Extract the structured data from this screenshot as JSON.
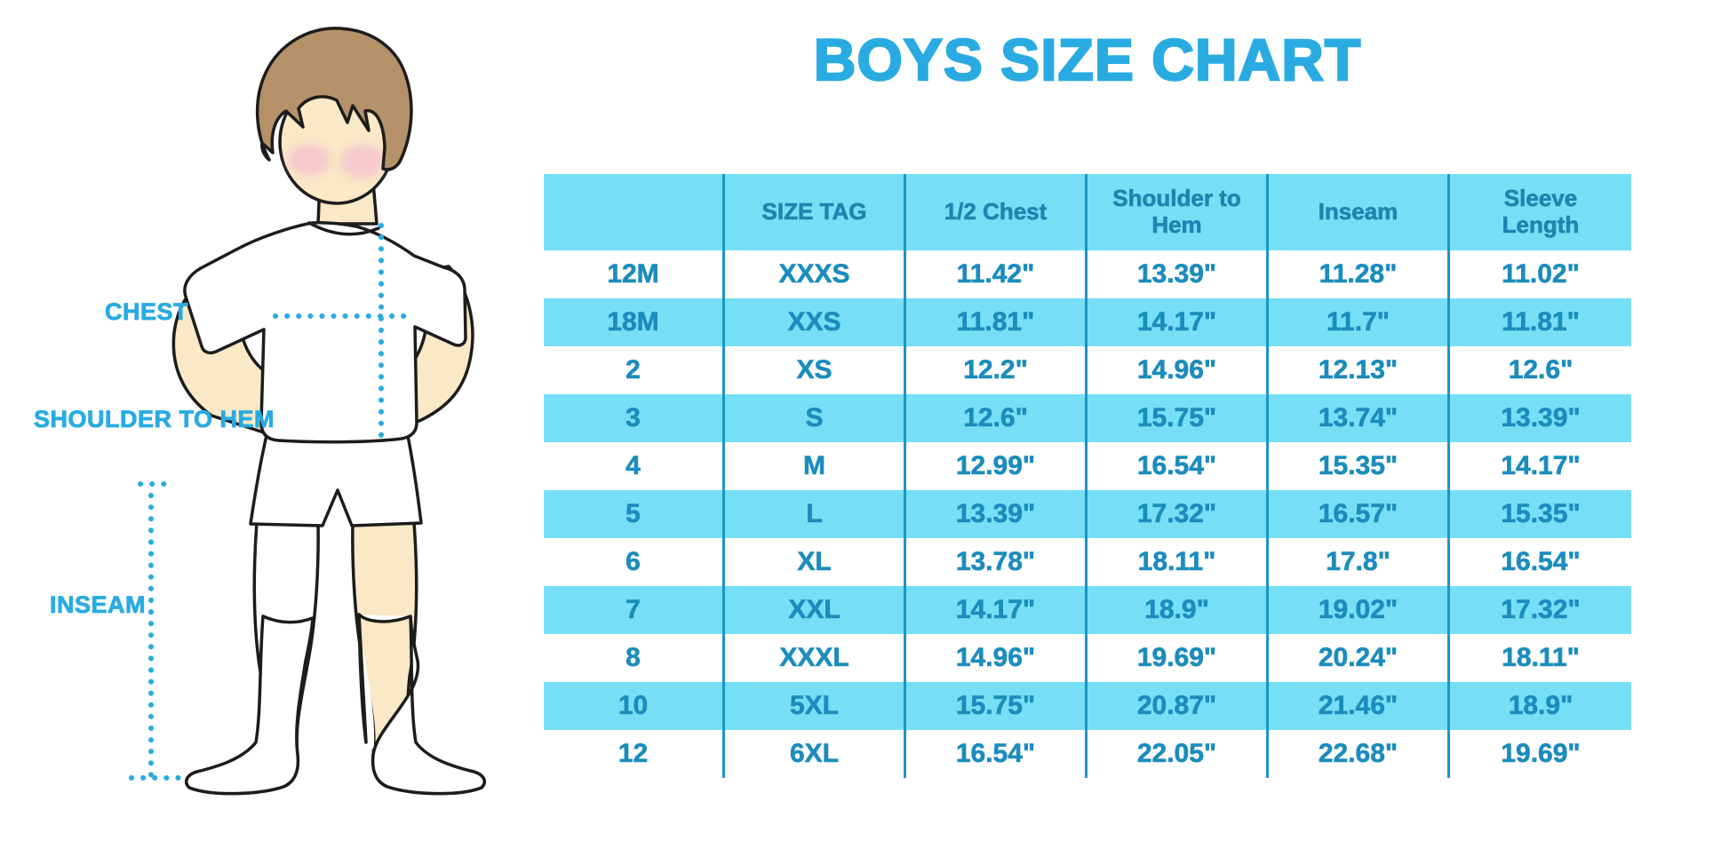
{
  "title": "BOYS SIZE CHART",
  "colors": {
    "accent_blue": "#29abe2",
    "table_alt_row_bg": "#76dff6",
    "table_divider": "#1a95c8",
    "table_text": "#1b8cbd",
    "skin": "#fae8c6",
    "hair": "#b59169",
    "blush": "#f4bfd0"
  },
  "diagram": {
    "chest_label": "CHEST",
    "shoulder_to_hem_label": "SHOULDER TO HEM",
    "inseam_label": "INSEAM"
  },
  "chart_data": {
    "type": "table",
    "title": "BOYS SIZE CHART",
    "units": "inches",
    "columns": [
      "",
      "SIZE TAG",
      "1/2 Chest",
      "Shoulder to Hem",
      "Inseam",
      "Sleeve Length"
    ],
    "rows": [
      [
        "12M",
        "XXXS",
        "11.42\"",
        "13.39\"",
        "11.28\"",
        "11.02\""
      ],
      [
        "18M",
        "XXS",
        "11.81\"",
        "14.17\"",
        "11.7\"",
        "11.81\""
      ],
      [
        "2",
        "XS",
        "12.2\"",
        "14.96\"",
        "12.13\"",
        "12.6\""
      ],
      [
        "3",
        "S",
        "12.6\"",
        "15.75\"",
        "13.74\"",
        "13.39\""
      ],
      [
        "4",
        "M",
        "12.99\"",
        "16.54\"",
        "15.35\"",
        "14.17\""
      ],
      [
        "5",
        "L",
        "13.39\"",
        "17.32\"",
        "16.57\"",
        "15.35\""
      ],
      [
        "6",
        "XL",
        "13.78\"",
        "18.11\"",
        "17.8\"",
        "16.54\""
      ],
      [
        "7",
        "XXL",
        "14.17\"",
        "18.9\"",
        "19.02\"",
        "17.32\""
      ],
      [
        "8",
        "XXXL",
        "14.96\"",
        "19.69\"",
        "20.24\"",
        "18.11\""
      ],
      [
        "10",
        "5XL",
        "15.75\"",
        "20.87\"",
        "21.46\"",
        "18.9\""
      ],
      [
        "12",
        "6XL",
        "16.54\"",
        "22.05\"",
        "22.68\"",
        "19.69\""
      ]
    ]
  }
}
